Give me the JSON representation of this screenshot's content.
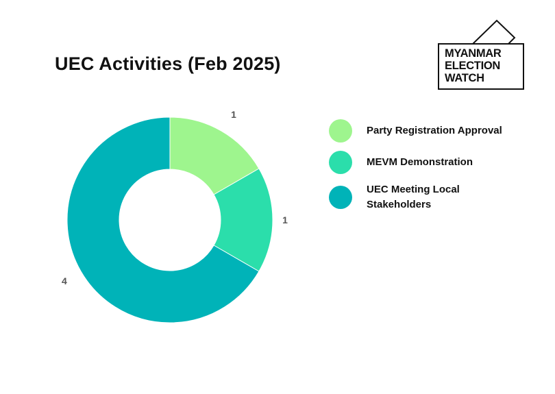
{
  "chart_data": {
    "type": "pie",
    "variant": "donut",
    "title": "UEC Activities (Feb 2025)",
    "categories": [
      "Party Registration Approval",
      "MEVM Demonstration",
      "UEC Meeting Local Stakeholders"
    ],
    "values": [
      1,
      1,
      4
    ],
    "data_labels": [
      "1",
      "1",
      "4"
    ],
    "colors": [
      "#9ef58e",
      "#2bdeab",
      "#00b3b8"
    ],
    "legend_position": "right"
  },
  "logo": {
    "line1": "MYANMAR",
    "line2": "ELECTION",
    "line3": "WATCH"
  }
}
